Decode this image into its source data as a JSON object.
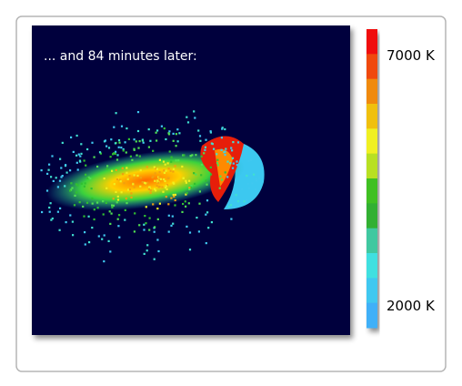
{
  "caption": "... and 84 minutes later:",
  "colorbar": {
    "max_label": "7000 K",
    "min_label": "2000 K"
  }
}
